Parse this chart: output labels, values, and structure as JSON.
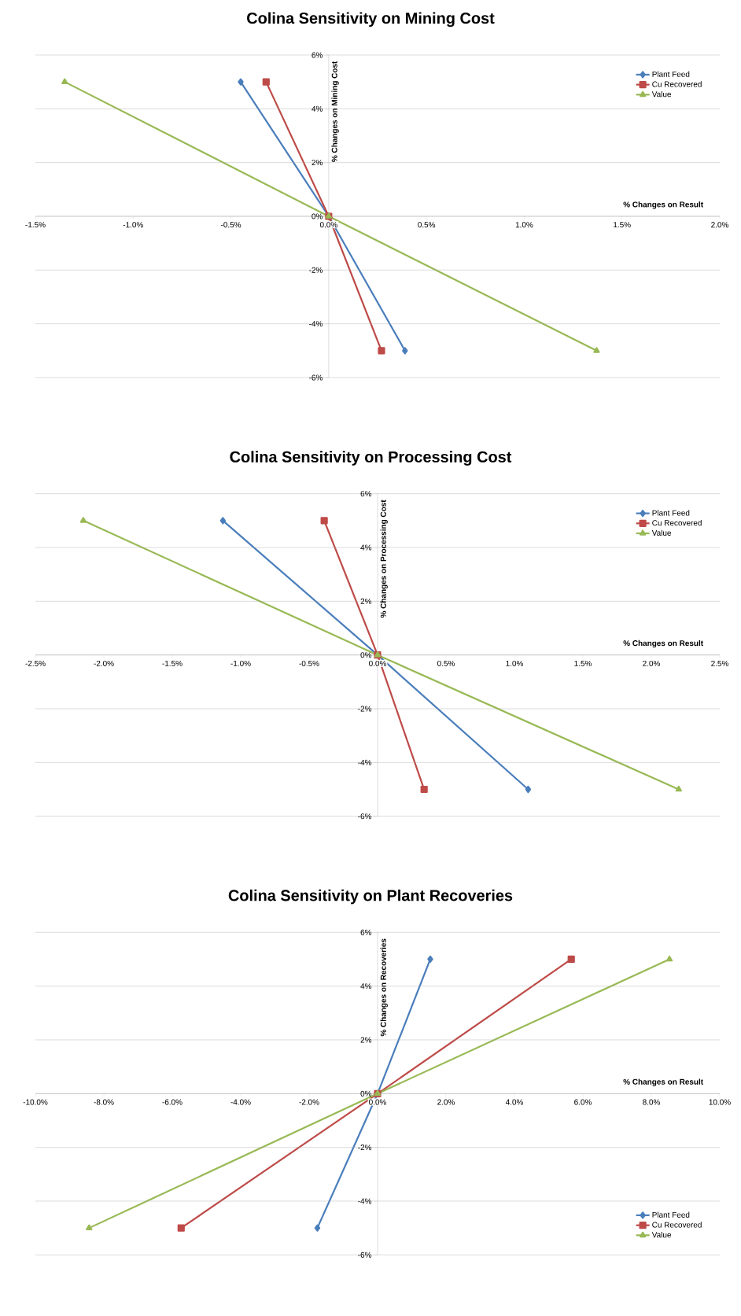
{
  "chart_data": [
    {
      "type": "line",
      "title": "Colina Sensitivity on Mining Cost",
      "xlabel": "% Changes on Result",
      "ylabel": "% Changes on Mining Cost",
      "xlim": [
        -1.5,
        2.0
      ],
      "xticks": [
        {
          "value": -1.5,
          "label": "-1.5%"
        },
        {
          "value": -1.0,
          "label": "-1.0%"
        },
        {
          "value": -0.5,
          "label": "-0.5%"
        },
        {
          "value": 0.0,
          "label": "0.0%"
        },
        {
          "value": 0.5,
          "label": "0.5%"
        },
        {
          "value": 1.0,
          "label": "1.0%"
        },
        {
          "value": 1.5,
          "label": "1.5%"
        },
        {
          "value": 2.0,
          "label": "2.0%"
        }
      ],
      "ylim": [
        -6,
        6
      ],
      "yticks": [
        {
          "value": -6,
          "label": "-6%"
        },
        {
          "value": -4,
          "label": "-4%"
        },
        {
          "value": -2,
          "label": "-2%"
        },
        {
          "value": 0,
          "label": "0%"
        },
        {
          "value": 2,
          "label": "2%"
        },
        {
          "value": 4,
          "label": "4%"
        },
        {
          "value": 6,
          "label": "6%"
        }
      ],
      "grid": "y",
      "legend": "top right",
      "series": [
        {
          "name": "Plant Feed",
          "color": "#4a7ebb",
          "marker": "diamond",
          "x": [
            -0.45,
            0.0,
            0.39
          ],
          "values": [
            5,
            0,
            -5
          ]
        },
        {
          "name": "Cu Recovered",
          "color": "#be4b48",
          "marker": "square",
          "x": [
            -0.32,
            0.0,
            0.27
          ],
          "values": [
            5,
            0,
            -5
          ]
        },
        {
          "name": "Value",
          "color": "#98b954",
          "marker": "triangle",
          "x": [
            -1.35,
            0.0,
            1.37
          ],
          "values": [
            5,
            0,
            -5
          ]
        }
      ]
    },
    {
      "type": "line",
      "title": "Colina Sensitivity on Processing Cost",
      "xlabel": "% Changes on Result",
      "ylabel": "% Changes on Processing Cost",
      "xlim": [
        -2.5,
        2.5
      ],
      "xticks": [
        {
          "value": -2.5,
          "label": "-2.5%"
        },
        {
          "value": -2.0,
          "label": "-2.0%"
        },
        {
          "value": -1.5,
          "label": "-1.5%"
        },
        {
          "value": -1.0,
          "label": "-1.0%"
        },
        {
          "value": -0.5,
          "label": "-0.5%"
        },
        {
          "value": 0.0,
          "label": "0.0%"
        },
        {
          "value": 0.5,
          "label": "0.5%"
        },
        {
          "value": 1.0,
          "label": "1.0%"
        },
        {
          "value": 1.5,
          "label": "1.5%"
        },
        {
          "value": 2.0,
          "label": "2.0%"
        },
        {
          "value": 2.5,
          "label": "2.5%"
        }
      ],
      "ylim": [
        -6,
        6
      ],
      "yticks": [
        {
          "value": -6,
          "label": "-6%"
        },
        {
          "value": -4,
          "label": "-4%"
        },
        {
          "value": -2,
          "label": "-2%"
        },
        {
          "value": 0,
          "label": "0%"
        },
        {
          "value": 2,
          "label": "2%"
        },
        {
          "value": 4,
          "label": "4%"
        },
        {
          "value": 6,
          "label": "6%"
        }
      ],
      "grid": "y",
      "legend": "top right",
      "series": [
        {
          "name": "Plant Feed",
          "color": "#4a7ebb",
          "marker": "diamond",
          "x": [
            -1.13,
            0.0,
            1.1
          ],
          "values": [
            5,
            0,
            -5
          ]
        },
        {
          "name": "Cu Recovered",
          "color": "#be4b48",
          "marker": "square",
          "x": [
            -0.39,
            0.0,
            0.34
          ],
          "values": [
            5,
            0,
            -5
          ]
        },
        {
          "name": "Value",
          "color": "#98b954",
          "marker": "triangle",
          "x": [
            -2.15,
            0.0,
            2.2
          ],
          "values": [
            5,
            0,
            -5
          ]
        }
      ]
    },
    {
      "type": "line",
      "title": "Colina Sensitivity on Plant Recoveries",
      "xlabel": "% Changes on Result",
      "ylabel": "% Changes on Recoveries",
      "xlim": [
        -10,
        10
      ],
      "xticks": [
        {
          "value": -10,
          "label": "-10.0%"
        },
        {
          "value": -8,
          "label": "-8.0%"
        },
        {
          "value": -6,
          "label": "-6.0%"
        },
        {
          "value": -4,
          "label": "-4.0%"
        },
        {
          "value": -2,
          "label": "-2.0%"
        },
        {
          "value": 0,
          "label": "0.0%"
        },
        {
          "value": 2,
          "label": "2.0%"
        },
        {
          "value": 4,
          "label": "4.0%"
        },
        {
          "value": 6,
          "label": "6.0%"
        },
        {
          "value": 8,
          "label": "8.0%"
        },
        {
          "value": 10,
          "label": "10.0%"
        }
      ],
      "ylim": [
        -6,
        6
      ],
      "yticks": [
        {
          "value": -6,
          "label": "-6%"
        },
        {
          "value": -4,
          "label": "-4%"
        },
        {
          "value": -2,
          "label": "-2%"
        },
        {
          "value": 0,
          "label": "0%"
        },
        {
          "value": 2,
          "label": "2%"
        },
        {
          "value": 4,
          "label": "4%"
        },
        {
          "value": 6,
          "label": "6%"
        }
      ],
      "grid": "y",
      "legend": "bottom right",
      "series": [
        {
          "name": "Plant Feed",
          "color": "#4a7ebb",
          "marker": "diamond",
          "x": [
            -1.76,
            0.0,
            1.54
          ],
          "values": [
            -5,
            0,
            5
          ]
        },
        {
          "name": "Cu Recovered",
          "color": "#be4b48",
          "marker": "square",
          "x": [
            -5.74,
            0.0,
            5.66
          ],
          "values": [
            -5,
            0,
            5
          ]
        },
        {
          "name": "Value",
          "color": "#98b954",
          "marker": "triangle",
          "x": [
            -8.43,
            0.0,
            8.53
          ],
          "values": [
            -5,
            0,
            5
          ]
        }
      ]
    }
  ]
}
